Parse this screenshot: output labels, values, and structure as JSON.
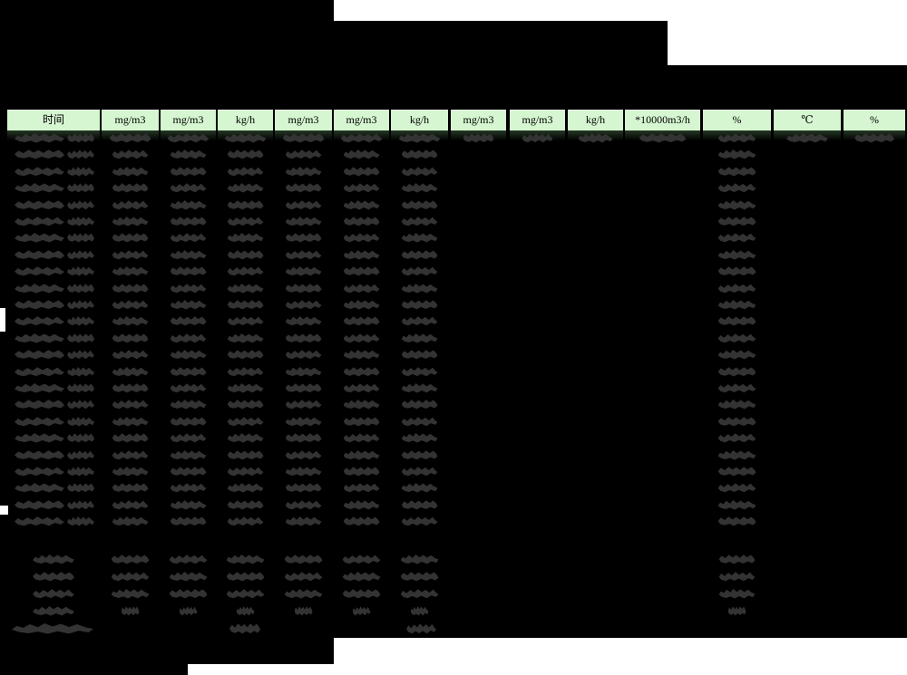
{
  "header": {
    "columns": [
      "时间",
      "mg/m3",
      "mg/m3",
      "kg/h",
      "mg/m3",
      "mg/m3",
      "kg/h",
      "mg/m3",
      "mg/m3",
      "kg/h",
      "*10000m3/h",
      "%",
      "℃",
      "%"
    ]
  },
  "table": {
    "data_row_count": 24,
    "summary_row_count": 4,
    "has_total_row": true,
    "values_redacted": true,
    "redacted_columns_all_rows": [
      0,
      1,
      2,
      3,
      4,
      5,
      6,
      11
    ],
    "redacted_columns_first_row_only": [
      7,
      8,
      9,
      10,
      12,
      13
    ],
    "summary_redacted_columns": [
      1,
      2,
      3,
      4,
      5,
      6,
      11
    ],
    "total_row_value_columns": [
      3,
      6
    ]
  },
  "colors": {
    "background": "#000000",
    "surround_white": "#ffffff",
    "header_bg": "#d5f6d0",
    "header_text": "#000000",
    "header_top_line": "#eefbea",
    "redacted_blob": "#333333"
  }
}
